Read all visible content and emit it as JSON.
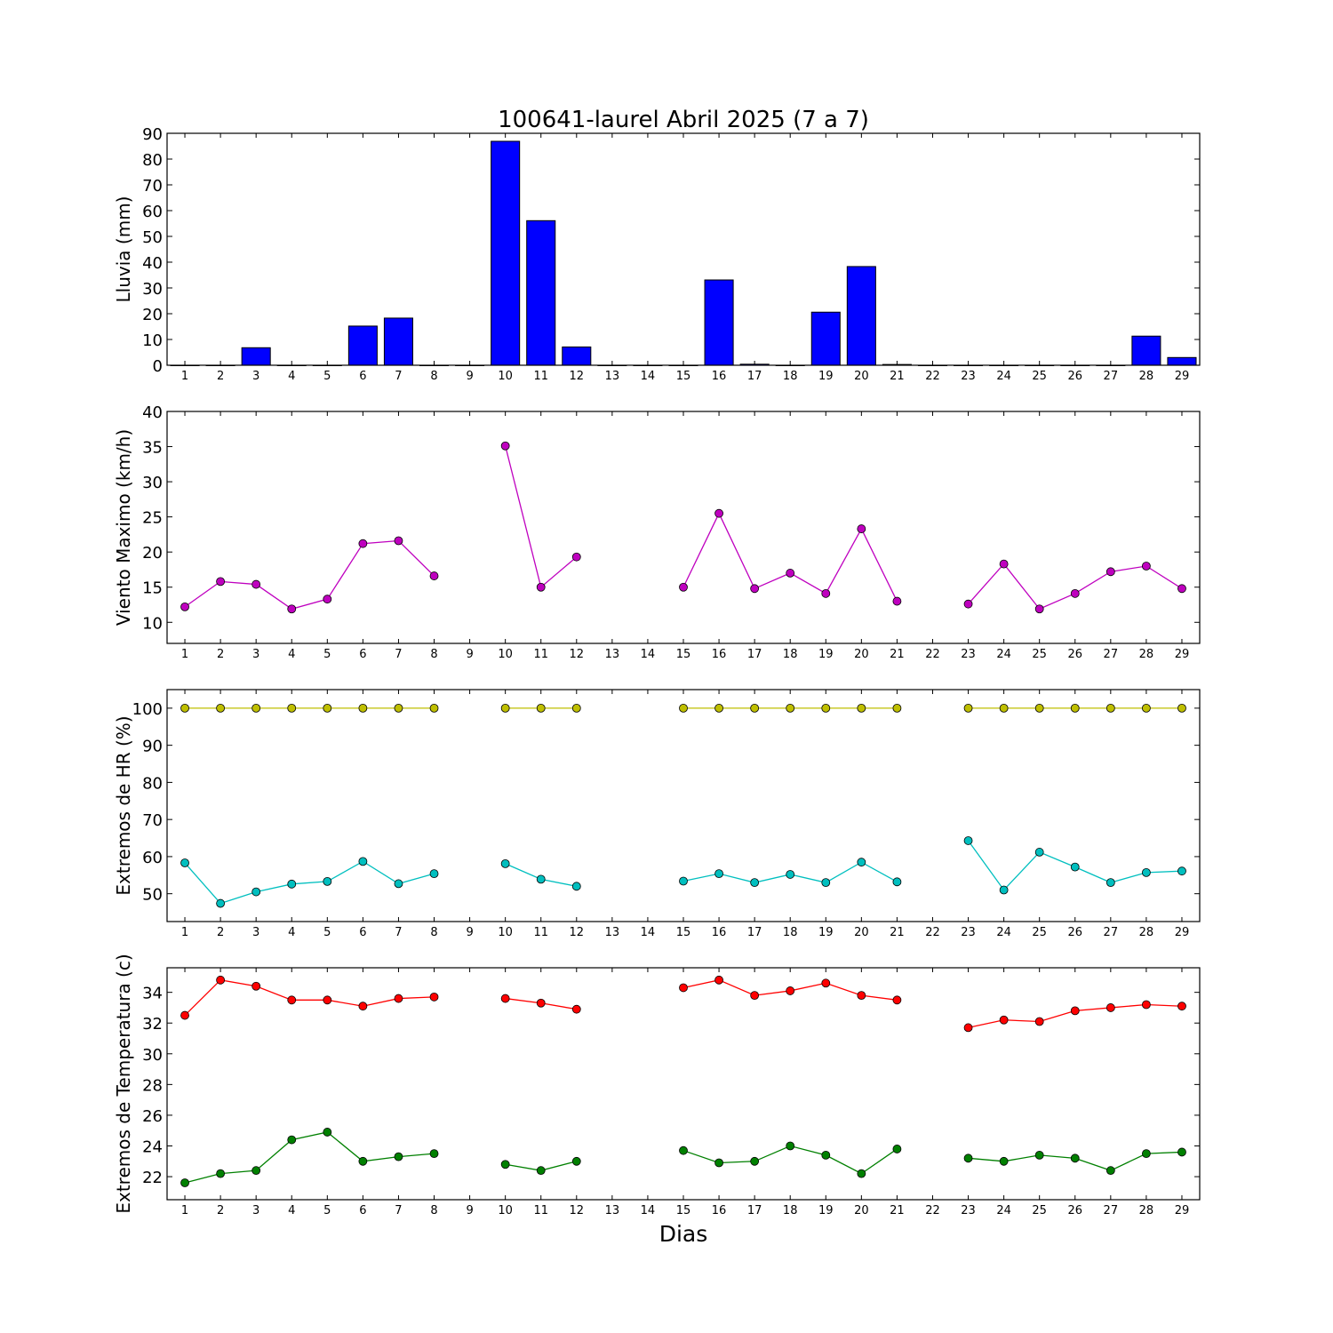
{
  "title": "100641-laurel Abril 2025  (7 a 7)",
  "xlabel": "Dias",
  "chart_data": [
    {
      "type": "bar",
      "ylabel": "Lluvia (mm)",
      "ylim": [
        0,
        90
      ],
      "yticks": [
        0,
        10,
        20,
        30,
        40,
        50,
        60,
        70,
        80,
        90
      ],
      "x": [
        1,
        2,
        3,
        4,
        5,
        6,
        7,
        8,
        9,
        10,
        11,
        12,
        13,
        14,
        15,
        16,
        17,
        18,
        19,
        20,
        21,
        22,
        23,
        24,
        25,
        26,
        27,
        28,
        29
      ],
      "xlim": [
        0.5,
        29.5
      ],
      "series": [
        {
          "color": "#0000ff",
          "values": [
            0,
            0,
            6.8,
            0,
            0,
            15.2,
            18.3,
            0,
            0,
            86.9,
            56.1,
            7.1,
            0,
            0,
            0,
            33.1,
            0.4,
            0,
            20.6,
            38.3,
            0.3,
            0,
            0,
            0,
            0,
            0,
            0,
            11.3,
            3.0
          ]
        }
      ],
      "grid": false
    },
    {
      "type": "line",
      "ylabel": "Viento Maximo (km/h)",
      "ylim": [
        7,
        40
      ],
      "yticks": [
        10,
        15,
        20,
        25,
        30,
        35,
        40
      ],
      "x": [
        1,
        2,
        3,
        4,
        5,
        6,
        7,
        8,
        9,
        10,
        11,
        12,
        13,
        14,
        15,
        16,
        17,
        18,
        19,
        20,
        21,
        22,
        23,
        24,
        25,
        26,
        27,
        28,
        29
      ],
      "xlim": [
        0.5,
        29.5
      ],
      "series": [
        {
          "color": "#bf00bf",
          "values": [
            12.2,
            15.8,
            15.4,
            11.9,
            13.3,
            21.2,
            21.6,
            16.6,
            null,
            35.1,
            15.0,
            19.3,
            null,
            null,
            15.0,
            25.5,
            14.8,
            17.0,
            14.1,
            23.3,
            13.0,
            null,
            12.6,
            18.3,
            11.9,
            14.1,
            17.2,
            18.0,
            14.8
          ]
        }
      ],
      "grid": false
    },
    {
      "type": "line",
      "ylabel": "Extremos de HR (%)",
      "ylim": [
        42.5,
        105
      ],
      "yticks": [
        50,
        60,
        70,
        80,
        90,
        100
      ],
      "x": [
        1,
        2,
        3,
        4,
        5,
        6,
        7,
        8,
        9,
        10,
        11,
        12,
        13,
        14,
        15,
        16,
        17,
        18,
        19,
        20,
        21,
        22,
        23,
        24,
        25,
        26,
        27,
        28,
        29
      ],
      "xlim": [
        0.5,
        29.5
      ],
      "series": [
        {
          "color": "#bfbf00",
          "values": [
            100,
            100,
            100,
            100,
            100,
            100,
            100,
            100,
            null,
            100,
            100,
            100,
            null,
            null,
            100,
            100,
            100,
            100,
            100,
            100,
            100,
            null,
            100,
            100,
            100,
            100,
            100,
            100,
            100
          ]
        },
        {
          "color": "#00bfbf",
          "values": [
            58.3,
            47.4,
            50.5,
            52.6,
            53.3,
            58.7,
            52.7,
            55.4,
            null,
            58.1,
            53.9,
            52.0,
            null,
            null,
            53.4,
            55.4,
            53.0,
            55.2,
            53.0,
            58.5,
            53.2,
            null,
            64.3,
            51.0,
            61.2,
            57.2,
            53.0,
            55.7,
            56.1
          ]
        }
      ],
      "grid": false
    },
    {
      "type": "line",
      "ylabel": "Extremos de Temperatura (c)",
      "ylim": [
        20.5,
        35.6
      ],
      "yticks": [
        22,
        24,
        26,
        28,
        30,
        32,
        34
      ],
      "x": [
        1,
        2,
        3,
        4,
        5,
        6,
        7,
        8,
        9,
        10,
        11,
        12,
        13,
        14,
        15,
        16,
        17,
        18,
        19,
        20,
        21,
        22,
        23,
        24,
        25,
        26,
        27,
        28,
        29
      ],
      "xlim": [
        0.5,
        29.5
      ],
      "series": [
        {
          "color": "#ff0000",
          "values": [
            32.5,
            34.8,
            34.4,
            33.5,
            33.5,
            33.1,
            33.6,
            33.7,
            null,
            33.6,
            33.3,
            32.9,
            null,
            null,
            34.3,
            34.8,
            33.8,
            34.1,
            34.6,
            33.8,
            33.5,
            null,
            31.7,
            32.2,
            32.1,
            32.8,
            33.0,
            33.2,
            33.1
          ]
        },
        {
          "color": "#008000",
          "values": [
            21.6,
            22.2,
            22.4,
            24.4,
            24.9,
            23.0,
            23.3,
            23.5,
            null,
            22.8,
            22.4,
            23.0,
            null,
            null,
            23.7,
            22.9,
            23.0,
            24.0,
            23.4,
            22.2,
            23.8,
            null,
            23.2,
            23.0,
            23.4,
            23.2,
            22.4,
            23.5,
            23.6
          ]
        }
      ],
      "grid": false
    }
  ]
}
